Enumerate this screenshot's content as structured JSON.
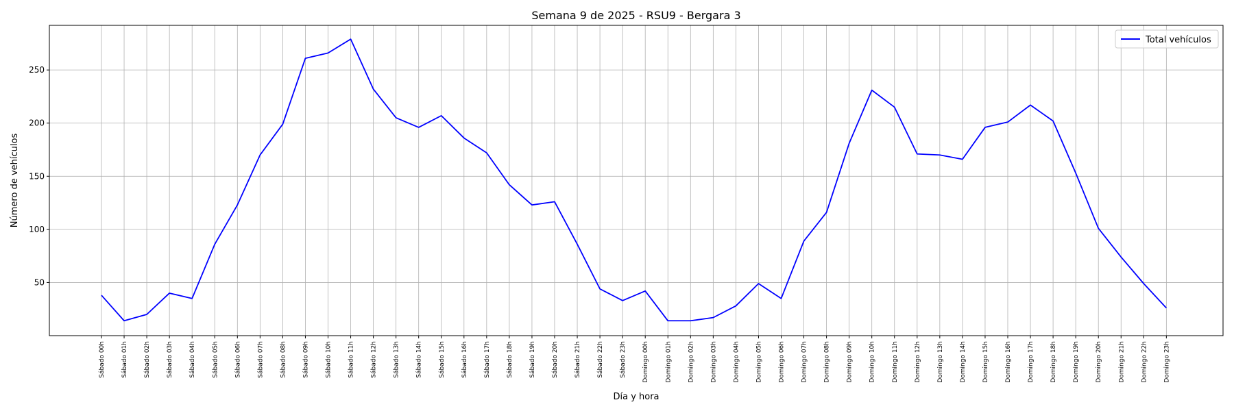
{
  "chart_data": {
    "type": "line",
    "title": "Semana 9 de 2025 - RSU9 - Bergara 3",
    "xlabel": "Día y hora",
    "ylabel": "Número de vehículos",
    "ylim": [
      0,
      292
    ],
    "yticks": [
      50,
      100,
      150,
      200,
      250
    ],
    "grid": true,
    "legend_position": "top-right",
    "categories": [
      "Sábado 00h",
      "Sábado 01h",
      "Sábado 02h",
      "Sábado 03h",
      "Sábado 04h",
      "Sábado 05h",
      "Sábado 06h",
      "Sábado 07h",
      "Sábado 08h",
      "Sábado 09h",
      "Sábado 10h",
      "Sábado 11h",
      "Sábado 12h",
      "Sábado 13h",
      "Sábado 14h",
      "Sábado 15h",
      "Sábado 16h",
      "Sábado 17h",
      "Sábado 18h",
      "Sábado 19h",
      "Sábado 20h",
      "Sábado 21h",
      "Sábado 22h",
      "Sábado 23h",
      "Domingo 00h",
      "Domingo 01h",
      "Domingo 02h",
      "Domingo 03h",
      "Domingo 04h",
      "Domingo 05h",
      "Domingo 06h",
      "Domingo 07h",
      "Domingo 08h",
      "Domingo 09h",
      "Domingo 10h",
      "Domingo 11h",
      "Domingo 12h",
      "Domingo 13h",
      "Domingo 14h",
      "Domingo 15h",
      "Domingo 16h",
      "Domingo 17h",
      "Domingo 18h",
      "Domingo 19h",
      "Domingo 20h",
      "Domingo 21h",
      "Domingo 22h",
      "Domingo 23h"
    ],
    "series": [
      {
        "name": "Total vehículos",
        "color": "#0000ff",
        "values": [
          38,
          14,
          20,
          40,
          35,
          86,
          123,
          170,
          199,
          261,
          266,
          279,
          232,
          205,
          196,
          207,
          186,
          172,
          142,
          123,
          126,
          86,
          44,
          33,
          42,
          14,
          14,
          17,
          28,
          49,
          35,
          89,
          116,
          181,
          231,
          215,
          171,
          170,
          166,
          196,
          201,
          217,
          202,
          153,
          101,
          74,
          49,
          26
        ]
      }
    ]
  }
}
